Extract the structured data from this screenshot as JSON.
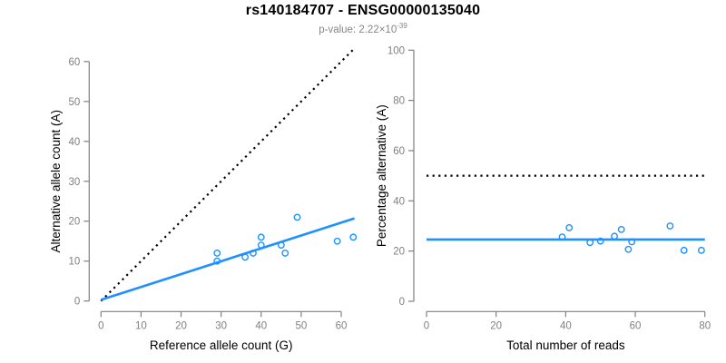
{
  "header": {
    "title": "rs140184707 - ENSG00000135040",
    "subtitle_base": "p-value: 2.22×10",
    "subtitle_exponent": "-39"
  },
  "colors": {
    "accent_blue": "#1E90FF",
    "axis_gray": "#808080",
    "tick_label_gray": "#808080",
    "axis_title_black": "#000000",
    "subtitle_gray": "#878787",
    "background": "#FFFFFF",
    "dotted_line_black": "#000000"
  },
  "chart_data": [
    {
      "type": "scatter",
      "panel": "left",
      "xlabel": "Reference allele count (G)",
      "ylabel": "Alternative allele count (A)",
      "xlim": [
        0,
        63
      ],
      "ylim": [
        0,
        63
      ],
      "xticks": [
        0,
        10,
        20,
        30,
        40,
        50,
        60
      ],
      "yticks": [
        0,
        10,
        20,
        30,
        40,
        50,
        60
      ],
      "grid": false,
      "points": [
        [
          29,
          10
        ],
        [
          29,
          12
        ],
        [
          36,
          11
        ],
        [
          38,
          12
        ],
        [
          40,
          14
        ],
        [
          40,
          16
        ],
        [
          45,
          14
        ],
        [
          46,
          12
        ],
        [
          49,
          21
        ],
        [
          59,
          15
        ],
        [
          63,
          16
        ]
      ],
      "lines": [
        {
          "name": "identity-line",
          "style": "dotted",
          "color": "#000000",
          "width": 2.2,
          "from": [
            0,
            0
          ],
          "to": [
            63,
            63
          ]
        },
        {
          "name": "fit-line",
          "style": "solid",
          "color": "#1E90FF",
          "width": 2.6,
          "from": [
            0,
            0.3
          ],
          "to": [
            63.3,
            20.7
          ]
        }
      ]
    },
    {
      "type": "scatter",
      "panel": "right",
      "xlabel": "Total number of reads",
      "ylabel": "Percentage alternative (A)",
      "xlim": [
        0,
        80
      ],
      "ylim": [
        0,
        100
      ],
      "xticks": [
        0,
        20,
        40,
        60,
        80
      ],
      "yticks": [
        0,
        20,
        40,
        60,
        80,
        100
      ],
      "grid": false,
      "points": [
        [
          39,
          25.6
        ],
        [
          41,
          29.3
        ],
        [
          47,
          23.4
        ],
        [
          50,
          24.0
        ],
        [
          54,
          25.9
        ],
        [
          56,
          28.6
        ],
        [
          58,
          20.7
        ],
        [
          59,
          23.7
        ],
        [
          70,
          30.0
        ],
        [
          74,
          20.3
        ],
        [
          79,
          20.3
        ]
      ],
      "lines": [
        {
          "name": "fifty-percent-line",
          "style": "dotted",
          "color": "#000000",
          "width": 2.2,
          "from": [
            0,
            50
          ],
          "to": [
            80,
            50
          ]
        },
        {
          "name": "mean-percentage-line",
          "style": "solid",
          "color": "#1E90FF",
          "width": 2.6,
          "from": [
            0,
            24.6
          ],
          "to": [
            80,
            24.6
          ]
        }
      ]
    }
  ]
}
